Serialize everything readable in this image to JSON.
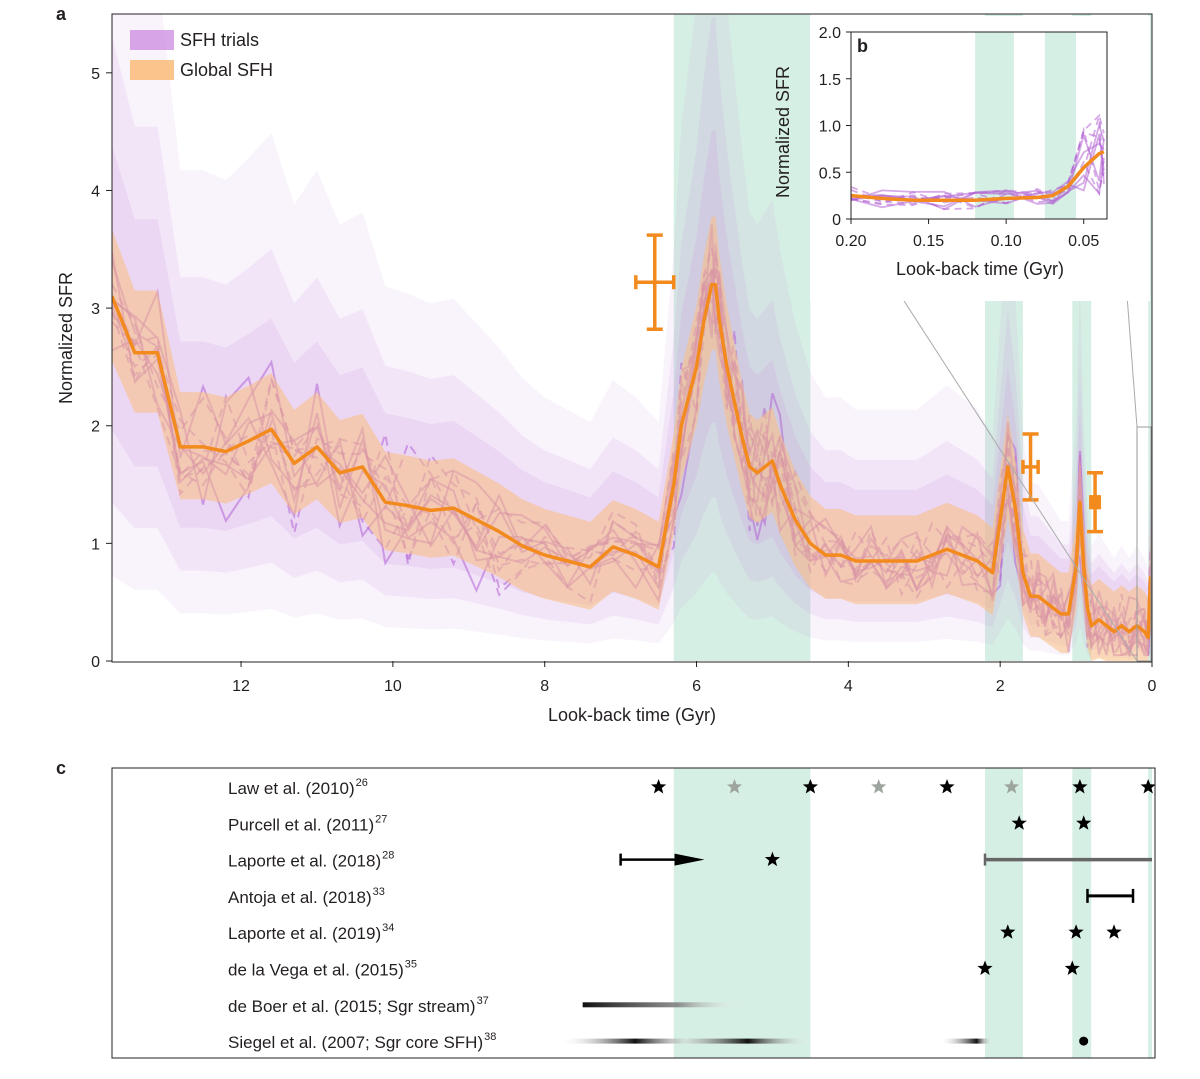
{
  "colors": {
    "orange": "#f28a1d",
    "purple": "#b264d4",
    "green_band": "#d6efe4",
    "frame": "#231f20"
  },
  "chart_data": [
    {
      "id": "a",
      "type": "line",
      "panel_letter": "a",
      "xlabel": "Look-back time (Gyr)",
      "ylabel": "Normalized SFR",
      "xlim": [
        13.7,
        0
      ],
      "ylim": [
        0,
        5.5
      ],
      "xticks": [
        12,
        10,
        8,
        6,
        4,
        2,
        0
      ],
      "yticks": [
        0,
        1,
        2,
        3,
        4,
        5
      ],
      "legend": {
        "position": "top-left",
        "entries": [
          "SFH trials",
          "Global SFH"
        ]
      },
      "shaded_bands": [
        [
          6.3,
          4.5
        ],
        [
          2.2,
          1.7
        ],
        [
          1.05,
          0.8
        ],
        [
          0.05,
          0.0
        ]
      ],
      "series": [
        {
          "name": "Global SFH",
          "x": [
            13.7,
            13.4,
            13.1,
            12.8,
            12.5,
            12.2,
            11.9,
            11.6,
            11.3,
            11.0,
            10.7,
            10.4,
            10.1,
            9.8,
            9.5,
            9.2,
            8.9,
            8.6,
            8.3,
            8.0,
            7.7,
            7.4,
            7.1,
            6.8,
            6.5,
            6.3,
            6.2,
            6.0,
            5.9,
            5.8,
            5.75,
            5.7,
            5.6,
            5.5,
            5.4,
            5.3,
            5.2,
            5.1,
            5.0,
            4.9,
            4.7,
            4.5,
            4.3,
            4.1,
            3.9,
            3.7,
            3.5,
            3.3,
            3.1,
            2.9,
            2.7,
            2.5,
            2.3,
            2.1,
            2.0,
            1.9,
            1.8,
            1.7,
            1.6,
            1.5,
            1.4,
            1.3,
            1.2,
            1.1,
            1.0,
            0.95,
            0.9,
            0.85,
            0.8,
            0.7,
            0.6,
            0.5,
            0.4,
            0.3,
            0.2,
            0.1,
            0.05,
            0.02
          ],
          "y": [
            3.1,
            2.62,
            2.62,
            1.82,
            1.82,
            1.78,
            1.87,
            1.97,
            1.68,
            1.82,
            1.6,
            1.65,
            1.35,
            1.32,
            1.28,
            1.3,
            1.2,
            1.1,
            0.98,
            0.9,
            0.85,
            0.8,
            0.97,
            0.9,
            0.8,
            1.5,
            2.0,
            2.5,
            2.9,
            3.2,
            3.2,
            2.9,
            2.5,
            2.2,
            1.9,
            1.65,
            1.6,
            1.65,
            1.7,
            1.5,
            1.2,
            1.0,
            0.9,
            0.9,
            0.85,
            0.85,
            0.85,
            0.85,
            0.85,
            0.9,
            0.95,
            0.9,
            0.85,
            0.75,
            1.2,
            1.65,
            1.3,
            0.75,
            0.55,
            0.55,
            0.5,
            0.45,
            0.4,
            0.4,
            0.8,
            1.35,
            0.8,
            0.45,
            0.3,
            0.35,
            0.3,
            0.25,
            0.3,
            0.25,
            0.3,
            0.25,
            0.2,
            0.72
          ]
        }
      ],
      "error_bars": [
        {
          "x": 6.55,
          "y": 3.22,
          "xerr": 0.25,
          "yerr": 0.4
        },
        {
          "x": 1.6,
          "y": 1.65,
          "xerr": 0.1,
          "yerr": 0.28
        },
        {
          "x": 0.75,
          "y": 1.35,
          "xerr": 0.04,
          "yerr": 0.25
        }
      ]
    },
    {
      "id": "b",
      "type": "line",
      "panel_letter": "b",
      "xlabel": "Look-back time (Gyr)",
      "ylabel": "Normalized SFR",
      "xlim": [
        0.2,
        0.035
      ],
      "ylim": [
        0,
        2.0
      ],
      "xticks": [
        "0.20",
        "0.15",
        "0.10",
        "0.05"
      ],
      "yticks": [
        "0",
        "0.5",
        "1.0",
        "1.5",
        "2.0"
      ],
      "shaded_bands": [
        [
          0.12,
          0.095
        ],
        [
          0.075,
          0.055
        ]
      ],
      "series": [
        {
          "name": "Global SFH",
          "x": [
            0.2,
            0.18,
            0.16,
            0.14,
            0.12,
            0.1,
            0.08,
            0.07,
            0.06,
            0.05,
            0.04,
            0.037
          ],
          "y": [
            0.25,
            0.22,
            0.2,
            0.2,
            0.2,
            0.22,
            0.23,
            0.25,
            0.35,
            0.55,
            0.7,
            0.72
          ]
        }
      ]
    },
    {
      "id": "c",
      "type": "timeline",
      "panel_letter": "c",
      "xlim": [
        13.7,
        0
      ],
      "shaded_bands": [
        [
          6.3,
          4.5
        ],
        [
          2.2,
          1.7
        ],
        [
          1.05,
          0.8
        ],
        [
          0.05,
          0.0
        ]
      ],
      "rows": [
        {
          "label": "Law et al. (2010)",
          "ref": "26",
          "stars": [
            {
              "x": 6.5,
              "gray": false
            },
            {
              "x": 5.5,
              "gray": true
            },
            {
              "x": 4.5,
              "gray": false
            },
            {
              "x": 3.6,
              "gray": true
            },
            {
              "x": 2.7,
              "gray": false
            },
            {
              "x": 1.85,
              "gray": true
            },
            {
              "x": 0.95,
              "gray": false
            },
            {
              "x": 0.05,
              "gray": false
            }
          ]
        },
        {
          "label": "Purcell et al. (2011)",
          "ref": "27",
          "stars": [
            {
              "x": 1.75,
              "gray": false
            },
            {
              "x": 0.9,
              "gray": false
            }
          ]
        },
        {
          "label": "Laporte et al. (2018)",
          "ref": "28",
          "stars": [
            {
              "x": 5.0,
              "gray": false
            }
          ],
          "ranges": [
            {
              "from": 7.0,
              "to": 6.0,
              "style": "arrow"
            },
            {
              "from": 2.2,
              "to": 0.0,
              "style": "gray"
            }
          ]
        },
        {
          "label": "Antoja et al. (2018)",
          "ref": "33",
          "ranges": [
            {
              "from": 0.85,
              "to": 0.25,
              "style": "solid"
            }
          ]
        },
        {
          "label": "Laporte et al. (2019)",
          "ref": "34",
          "stars": [
            {
              "x": 1.9,
              "gray": false
            },
            {
              "x": 1.0,
              "gray": false
            },
            {
              "x": 0.5,
              "gray": false
            }
          ]
        },
        {
          "label": "de la Vega et al. (2015)",
          "ref": "35",
          "stars": [
            {
              "x": 2.2,
              "gray": false
            },
            {
              "x": 1.05,
              "gray": false
            }
          ]
        },
        {
          "label": "de Boer et al. (2015; Sgr stream)",
          "ref": "37",
          "ranges": [
            {
              "from": 7.5,
              "to": 5.4,
              "style": "fade"
            }
          ]
        },
        {
          "label": "Siegel et al. (2007; Sgr core SFH)",
          "ref": "38",
          "dots": [
            0.9
          ],
          "ranges": [
            {
              "from": 7.8,
              "to": 4.5,
              "style": "fade-multi"
            },
            {
              "from": 2.8,
              "to": 2.1,
              "style": "fade-short"
            }
          ]
        }
      ]
    }
  ]
}
